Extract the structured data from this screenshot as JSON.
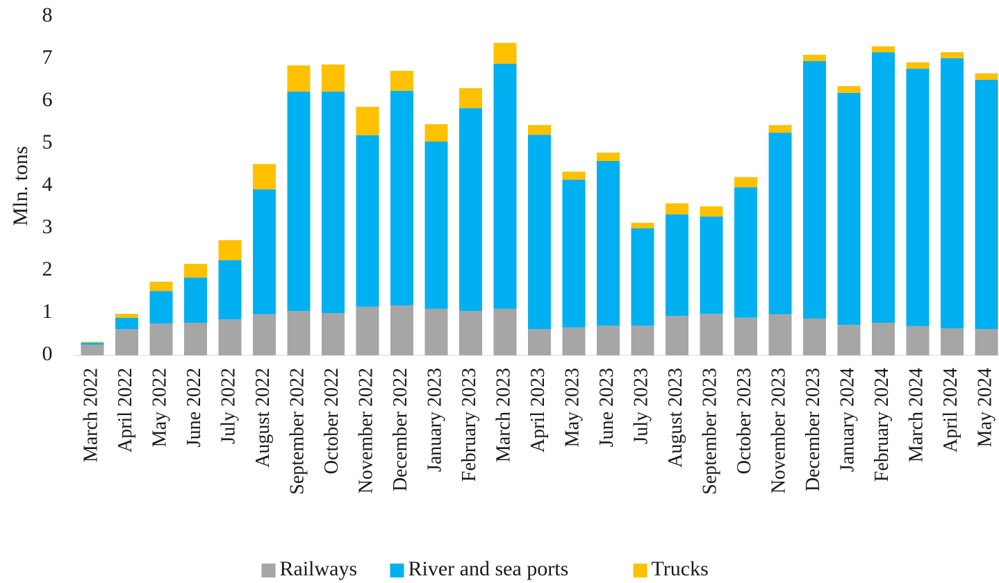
{
  "chart_data": {
    "type": "stacked_bar",
    "y_label": "Mln. tons",
    "categories": [
      "March 2022",
      "April 2022",
      "May 2022",
      "June 2022",
      "July 2022",
      "August 2022",
      "September 2022",
      "October 2022",
      "November 2022",
      "December 2022",
      "January 2023",
      "February 2023",
      "March 2023",
      "April 2023",
      "May 2023",
      "June 2023",
      "July 2023",
      "August 2023",
      "September 2023",
      "October 2023",
      "November 2023",
      "December 2023",
      "January 2024",
      "February 2024",
      "March 2024",
      "April 2024",
      "May 2024"
    ],
    "series": [
      {
        "name": "Railways",
        "color": "#a6a6a6",
        "values": [
          0.25,
          0.62,
          0.75,
          0.77,
          0.85,
          0.97,
          1.05,
          1.0,
          1.15,
          1.18,
          1.1,
          1.05,
          1.1,
          0.62,
          0.66,
          0.7,
          0.7,
          0.93,
          0.98,
          0.89,
          0.97,
          0.87,
          0.72,
          0.77,
          0.69,
          0.64,
          0.62
        ]
      },
      {
        "name": "River and sea ports",
        "color": "#00b0f0",
        "values": [
          0.05,
          0.27,
          0.77,
          1.07,
          1.4,
          2.95,
          5.18,
          5.23,
          4.05,
          5.07,
          3.95,
          4.79,
          5.79,
          4.59,
          3.49,
          3.89,
          2.3,
          2.4,
          2.3,
          3.08,
          4.29,
          6.08,
          5.48,
          6.39,
          6.08,
          6.38,
          5.89
        ]
      },
      {
        "name": "Trucks",
        "color": "#ffc000",
        "values": [
          0.02,
          0.09,
          0.22,
          0.32,
          0.47,
          0.6,
          0.62,
          0.64,
          0.67,
          0.47,
          0.41,
          0.47,
          0.49,
          0.23,
          0.19,
          0.2,
          0.13,
          0.26,
          0.24,
          0.24,
          0.18,
          0.15,
          0.16,
          0.14,
          0.15,
          0.14,
          0.15
        ]
      }
    ],
    "ylim": [
      0,
      8
    ],
    "yticks": [
      0,
      1,
      2,
      3,
      4,
      5,
      6,
      7,
      8
    ],
    "legend": "bottom"
  }
}
